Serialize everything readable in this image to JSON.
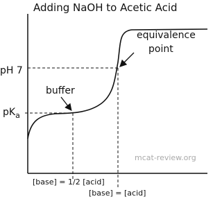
{
  "title": "Adding NaOH to Acetic Acid",
  "annotations": {
    "equivalence_line1": "equivalence",
    "equivalence_line2": "point",
    "buffer": "buffer"
  },
  "y_labels": {
    "ph7": "pH 7",
    "pka_main": "pK",
    "pka_sub": "a"
  },
  "x_labels": {
    "half": "[base] = 1/2 [acid]",
    "equal": "[base] = [acid]"
  },
  "watermark": "mcat-review.org"
}
